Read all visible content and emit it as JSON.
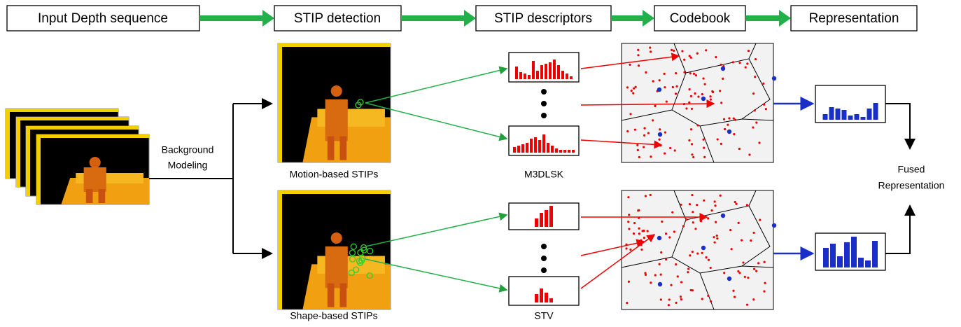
{
  "stages": [
    "Input Depth sequence",
    "STIP detection",
    "STIP descriptors",
    "Codebook",
    "Representation"
  ],
  "background_modeling": [
    "Background",
    "Modeling"
  ],
  "captions": {
    "motion": "Motion-based STIPs",
    "shape": "Shape-based STIPs",
    "m3dlsk": "M3DLSK",
    "stv": "STV"
  },
  "fused": [
    "Fused",
    "Representation"
  ]
}
